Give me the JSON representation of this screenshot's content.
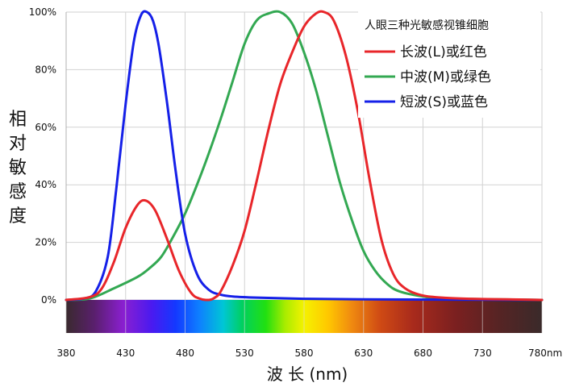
{
  "colors": {
    "L": "#e8262a",
    "M": "#33a852",
    "S": "#1520e8",
    "grid": "#d2d2d2"
  },
  "chart_data": {
    "type": "line",
    "title": "",
    "ylabel": "相对敏感度",
    "xlabel": "波 长 (nm)",
    "xlim": [
      380,
      780
    ],
    "ylim": [
      0,
      100
    ],
    "grid": true,
    "legend_placement": "top-right",
    "legend_title": "人眼三种光敏感视锥细胞",
    "x_ticks": [
      "380",
      "430",
      "480",
      "530",
      "580",
      "630",
      "680",
      "730",
      "780nm"
    ],
    "y_ticks": [
      "0%",
      "20%",
      "40%",
      "60%",
      "80%",
      "100%"
    ],
    "has_spectrum_band": true,
    "series": [
      {
        "name": "长波(L)或红色",
        "color_key": "L",
        "x": [
          380,
          400,
          410,
          420,
          430,
          440,
          447,
          455,
          465,
          475,
          485,
          492,
          500,
          505,
          510,
          520,
          530,
          540,
          550,
          560,
          570,
          580,
          590,
          597,
          605,
          615,
          625,
          635,
          645,
          655,
          665,
          680,
          700,
          720,
          750,
          780
        ],
        "y": [
          0,
          1,
          4,
          13,
          25,
          33,
          34.5,
          31,
          21,
          10,
          2.5,
          0.5,
          0,
          0.8,
          3,
          12,
          24,
          41,
          59,
          75,
          86,
          95,
          99.5,
          100,
          97,
          85,
          66,
          42,
          21,
          9,
          4,
          1.5,
          0.7,
          0.4,
          0.2,
          0
        ]
      },
      {
        "name": "中波(M)或绿色",
        "color_key": "M",
        "x": [
          380,
          400,
          420,
          440,
          450,
          460,
          470,
          480,
          490,
          500,
          510,
          520,
          530,
          540,
          550,
          560,
          570,
          580,
          590,
          600,
          610,
          620,
          630,
          640,
          650,
          660,
          680,
          700,
          780
        ],
        "y": [
          0,
          0.5,
          4,
          8,
          11,
          15,
          22,
          30,
          40,
          51,
          63,
          76,
          89,
          97,
          99.5,
          100,
          96,
          86,
          73,
          57,
          41,
          28,
          17,
          10,
          5.5,
          3,
          1.2,
          0.5,
          0
        ]
      },
      {
        "name": "短波(S)或蓝色",
        "color_key": "S",
        "x": [
          380,
          395,
          405,
          415,
          422,
          430,
          437,
          443,
          448,
          453,
          458,
          465,
          472,
          480,
          490,
          500,
          510,
          520,
          540,
          580,
          630,
          700,
          780
        ],
        "y": [
          0,
          0.5,
          3,
          15,
          38,
          68,
          90,
          99,
          100,
          97,
          88,
          68,
          45,
          23,
          9,
          3.5,
          1.8,
          1.2,
          0.8,
          0.4,
          0.2,
          0.1,
          0
        ]
      }
    ]
  }
}
